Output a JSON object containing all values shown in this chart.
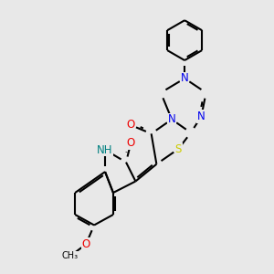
{
  "background_color": "#e8e8e8",
  "bond_color": "#000000",
  "bond_width": 1.5,
  "atom_colors": {
    "N": "#0000ee",
    "O": "#ee0000",
    "S": "#cccc00",
    "H": "#008080",
    "C": "#000000"
  },
  "font_size_atom": 8.5,
  "figsize": [
    3.0,
    3.0
  ],
  "dpi": 100
}
